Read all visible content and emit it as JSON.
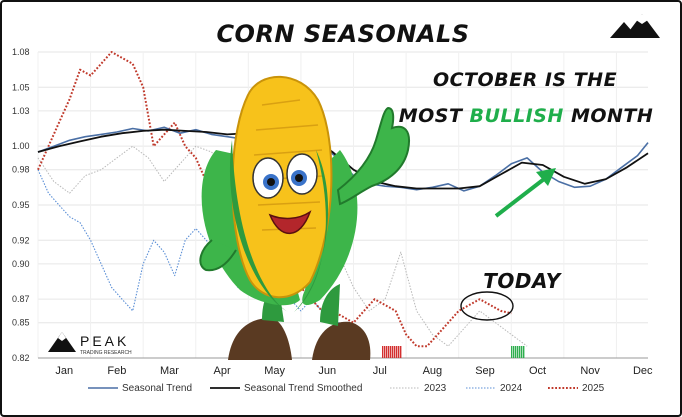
{
  "chart_data": {
    "type": "line",
    "title": "CORN SEASONALS",
    "annotation_headline": {
      "line1": "OCTOBER IS THE",
      "line2_pre": "MOST ",
      "line2_highlight": "BULLISH",
      "line2_post": " MONTH"
    },
    "annotation_today": "TODAY",
    "ylim": [
      0.82,
      1.08
    ],
    "yticks": [
      "1.08",
      "1.05",
      "1.03",
      "1.00",
      "0.98",
      "0.95",
      "0.92",
      "0.90",
      "0.87",
      "0.85",
      "0.82"
    ],
    "months": [
      "Jan",
      "Feb",
      "Mar",
      "Apr",
      "May",
      "Jun",
      "Jul",
      "Aug",
      "Sep",
      "Oct",
      "Nov",
      "Dec"
    ],
    "grid": true,
    "legend_position": "bottom",
    "colors": {
      "seasonal": "#4a6fa5",
      "smoothed": "#111111",
      "y2023": "#b8b8b8",
      "y2024": "#5b8fd6",
      "y2025": "#c0392b",
      "accent_green": "#1fae4b",
      "bar_red": "#d32f2f",
      "bar_green": "#2eae4e"
    },
    "series": [
      {
        "name": "Seasonal Trend",
        "x": [
          0.0,
          0.3,
          0.6,
          0.9,
          1.2,
          1.5,
          1.8,
          2.1,
          2.4,
          2.7,
          3.0,
          3.3,
          3.6,
          3.9,
          4.2,
          4.5,
          4.8,
          5.1,
          5.4,
          5.7,
          6.0,
          6.3,
          6.6,
          6.9,
          7.2,
          7.5,
          7.8,
          8.1,
          8.4,
          8.7,
          9.0,
          9.3,
          9.6,
          9.9,
          10.2,
          10.5,
          10.8,
          11.1,
          11.4,
          11.6
        ],
        "values": [
          0.995,
          1.0,
          1.005,
          1.008,
          1.01,
          1.012,
          1.015,
          1.013,
          1.016,
          1.011,
          1.014,
          1.01,
          1.008,
          1.006,
          1.01,
          1.016,
          1.018,
          1.012,
          1.0,
          0.99,
          0.975,
          0.968,
          0.966,
          0.965,
          0.963,
          0.965,
          0.968,
          0.962,
          0.966,
          0.975,
          0.985,
          0.99,
          0.978,
          0.97,
          0.965,
          0.966,
          0.972,
          0.982,
          0.992,
          1.003
        ]
      },
      {
        "name": "Seasonal Trend Smoothed",
        "x": [
          0.0,
          0.4,
          0.8,
          1.2,
          1.6,
          2.0,
          2.4,
          2.8,
          3.2,
          3.6,
          4.0,
          4.4,
          4.8,
          5.2,
          5.6,
          6.0,
          6.4,
          6.8,
          7.2,
          7.6,
          8.0,
          8.4,
          8.8,
          9.2,
          9.6,
          10.0,
          10.4,
          10.8,
          11.2,
          11.6
        ],
        "values": [
          0.995,
          1.0,
          1.004,
          1.008,
          1.011,
          1.013,
          1.014,
          1.013,
          1.012,
          1.01,
          1.011,
          1.014,
          1.014,
          1.008,
          0.995,
          0.98,
          0.97,
          0.966,
          0.964,
          0.964,
          0.964,
          0.966,
          0.976,
          0.986,
          0.984,
          0.974,
          0.968,
          0.972,
          0.982,
          0.994
        ]
      },
      {
        "name": "2023",
        "x": [
          0.0,
          0.3,
          0.6,
          0.9,
          1.2,
          1.5,
          1.8,
          2.1,
          2.4,
          2.7,
          3.0,
          3.3,
          3.6,
          3.9,
          4.2,
          4.5,
          4.8,
          5.1,
          5.4,
          5.7,
          6.0,
          6.3,
          6.6,
          6.9,
          7.2,
          7.5,
          7.8,
          8.1,
          8.4,
          8.7,
          9.0,
          9.3
        ],
        "values": [
          0.99,
          0.97,
          0.96,
          0.975,
          0.98,
          0.99,
          1.0,
          0.99,
          0.97,
          0.985,
          1.0,
          0.995,
          0.98,
          0.99,
          1.02,
          1.0,
          0.98,
          0.96,
          0.93,
          0.91,
          0.88,
          0.86,
          0.87,
          0.91,
          0.86,
          0.84,
          0.83,
          0.845,
          0.86,
          0.85,
          0.84,
          0.83
        ]
      },
      {
        "name": "2024",
        "x": [
          0.0,
          0.2,
          0.4,
          0.6,
          0.8,
          1.0,
          1.2,
          1.4,
          1.6,
          1.8,
          2.0,
          2.2,
          2.4,
          2.6,
          2.8,
          3.0,
          3.2,
          3.4,
          3.6,
          3.8,
          4.0,
          4.2,
          4.4,
          4.6,
          4.8,
          5.0,
          5.2,
          5.4,
          5.6,
          5.8,
          6.0
        ],
        "values": [
          0.98,
          0.96,
          0.95,
          0.94,
          0.935,
          0.92,
          0.9,
          0.88,
          0.87,
          0.86,
          0.9,
          0.92,
          0.91,
          0.89,
          0.92,
          0.93,
          0.92,
          0.91,
          0.9,
          0.88,
          0.89,
          0.9,
          0.91,
          0.89,
          0.87,
          0.86,
          0.87,
          0.86,
          0.85,
          0.85,
          0.84
        ]
      },
      {
        "name": "2025",
        "x": [
          0.0,
          0.2,
          0.4,
          0.6,
          0.8,
          1.0,
          1.2,
          1.4,
          1.6,
          1.8,
          2.0,
          2.2,
          2.4,
          2.6,
          2.8,
          3.0,
          3.2,
          3.4,
          3.6,
          3.8,
          4.0,
          4.2,
          4.4,
          4.6,
          4.8,
          5.0,
          5.2,
          5.4,
          5.6,
          5.8,
          6.0,
          6.2,
          6.4,
          6.6,
          6.8,
          7.0,
          7.2,
          7.4,
          7.6,
          7.8,
          8.0,
          8.2,
          8.4,
          8.6,
          8.8,
          9.0
        ],
        "values": [
          0.98,
          1.0,
          1.02,
          1.04,
          1.065,
          1.06,
          1.07,
          1.08,
          1.075,
          1.07,
          1.05,
          1.0,
          1.01,
          1.02,
          1.0,
          0.99,
          0.97,
          0.98,
          0.96,
          0.94,
          0.93,
          0.92,
          0.91,
          0.9,
          0.89,
          0.88,
          0.87,
          0.86,
          0.86,
          0.855,
          0.85,
          0.86,
          0.87,
          0.865,
          0.86,
          0.84,
          0.83,
          0.83,
          0.84,
          0.85,
          0.86,
          0.865,
          0.87,
          0.865,
          0.86,
          0.858
        ]
      }
    ],
    "legend": [
      "Seasonal Trend",
      "Seasonal Trend Smoothed",
      "2023",
      "2024",
      "2025"
    ],
    "branding": {
      "name": "PEAK",
      "sub": "TRADING RESEARCH"
    }
  }
}
